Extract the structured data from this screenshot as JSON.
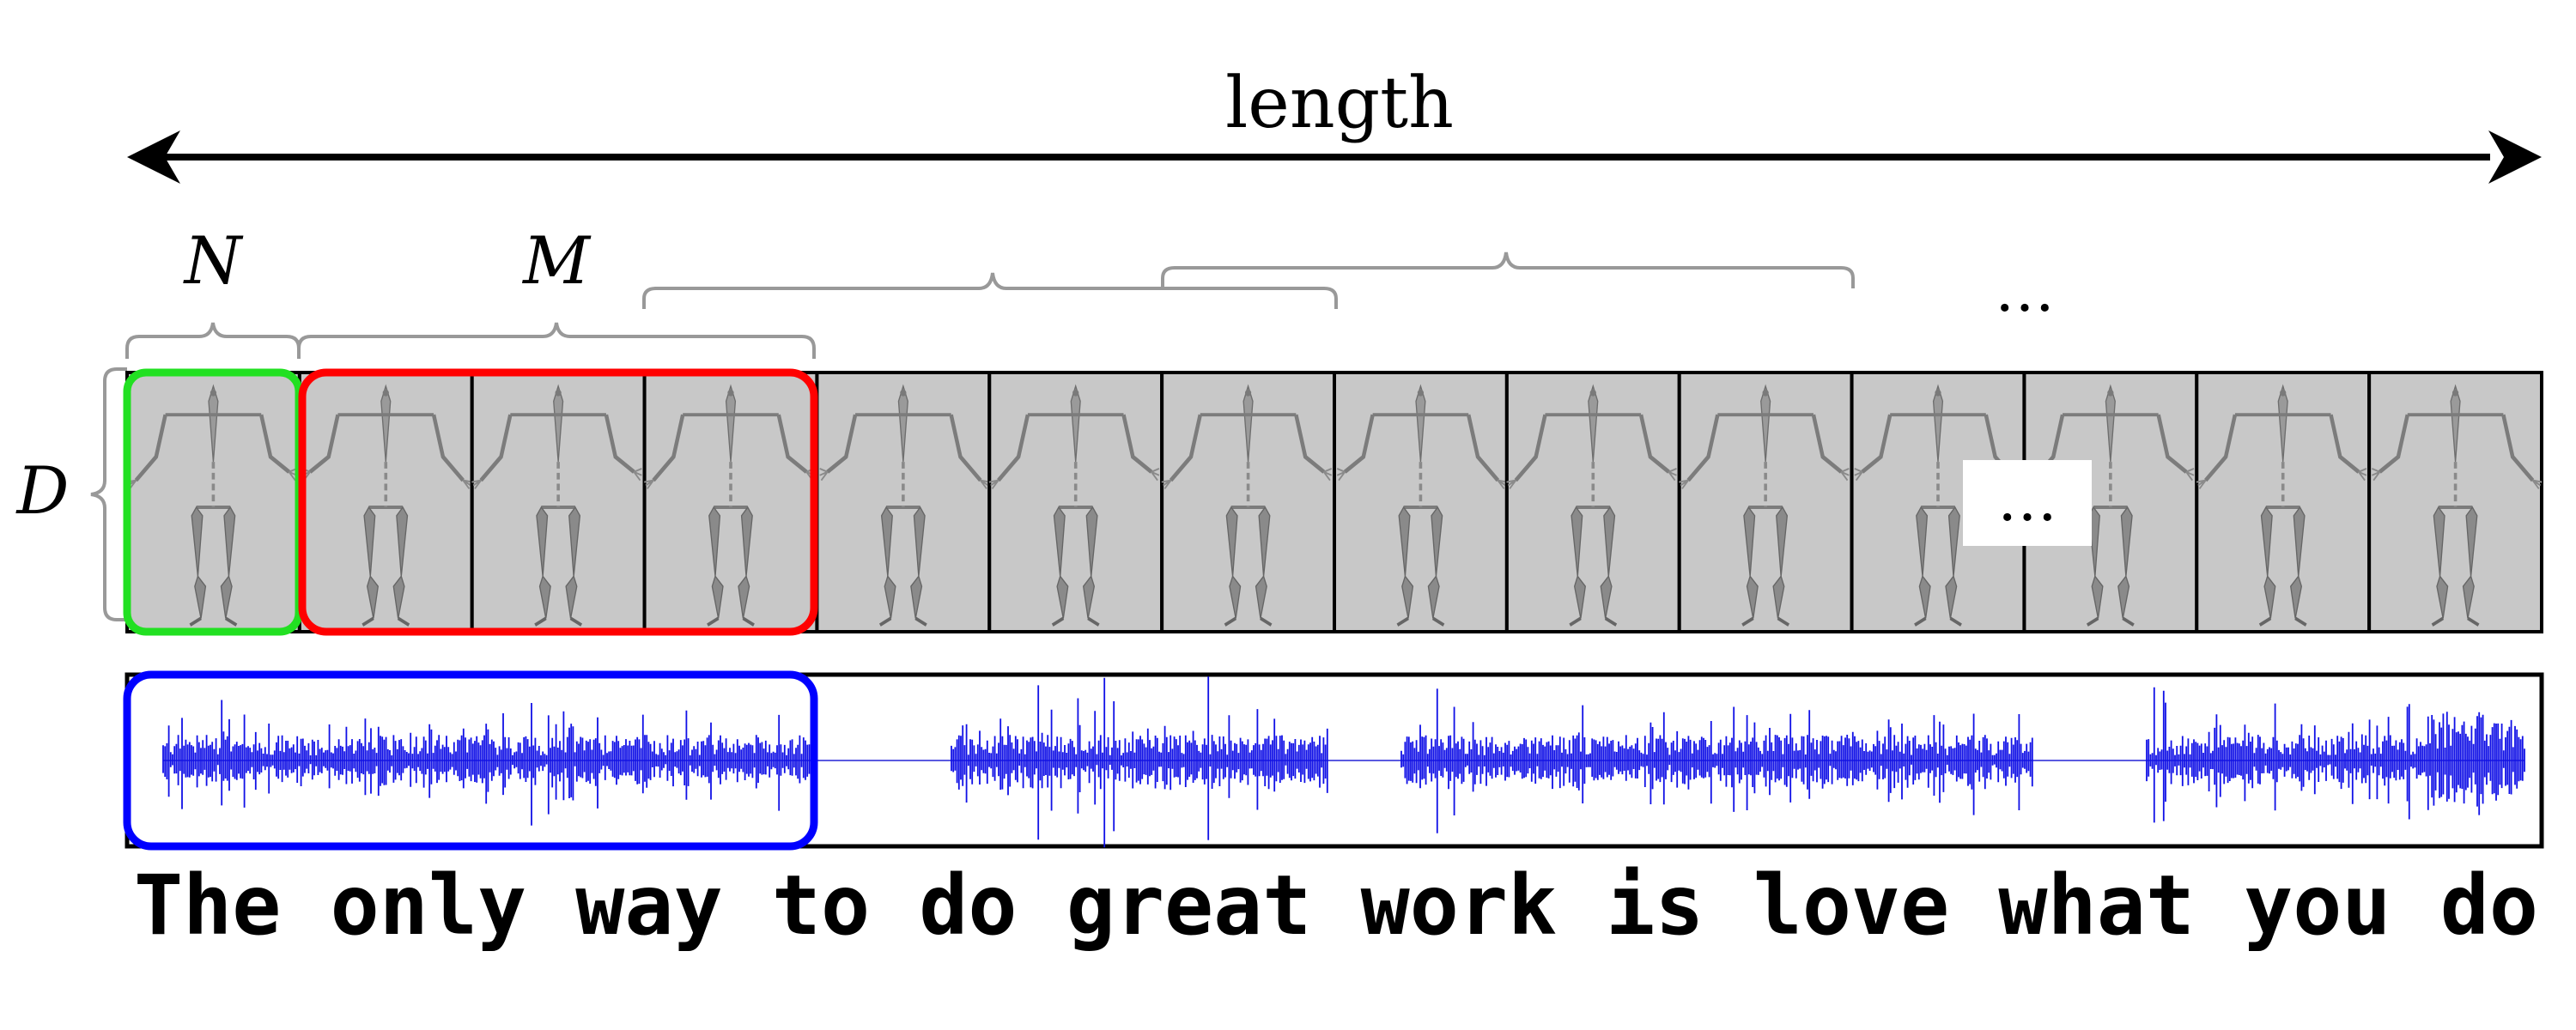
{
  "length_label": "length",
  "symbols": {
    "n": "N",
    "m": "M",
    "d": "D"
  },
  "ellipsis": "…",
  "frames": {
    "count": 14
  },
  "sentence": "The only way to do great work is love what you do",
  "colors": {
    "arrow": "#000000",
    "brace": "#999999",
    "frame_fill": "#c8c8c8",
    "frame_border": "#000000",
    "n_window": "#22e022",
    "m_window": "#ff0000",
    "audio_window": "#0000ff",
    "waveform": "#1010e6"
  },
  "icons": [
    "skeleton-pose-icon",
    "audio-waveform-icon"
  ]
}
